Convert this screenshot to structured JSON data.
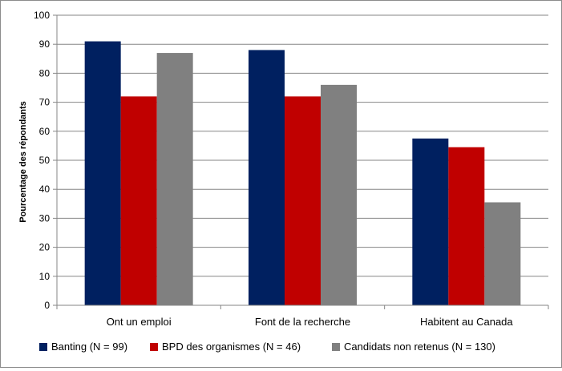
{
  "chart_data": {
    "type": "bar",
    "title": "",
    "xlabel": "",
    "ylabel": "Pourcentage des répondants",
    "ylim": [
      0,
      100
    ],
    "yticks": [
      0,
      10,
      20,
      30,
      40,
      50,
      60,
      70,
      80,
      90,
      100
    ],
    "grid": true,
    "legend_position": "bottom",
    "categories": [
      "Ont un emploi",
      "Font de la recherche",
      "Habitent au Canada"
    ],
    "series": [
      {
        "name": "Banting (N = 99)",
        "color": "#002060",
        "values": [
          91,
          88,
          57.5
        ]
      },
      {
        "name": "BPD des organismes (N = 46)",
        "color": "#C00000",
        "values": [
          72,
          72,
          54.5
        ]
      },
      {
        "name": "Candidats non retenus (N = 130)",
        "color": "#808080",
        "values": [
          87,
          76,
          35.5
        ]
      }
    ]
  }
}
